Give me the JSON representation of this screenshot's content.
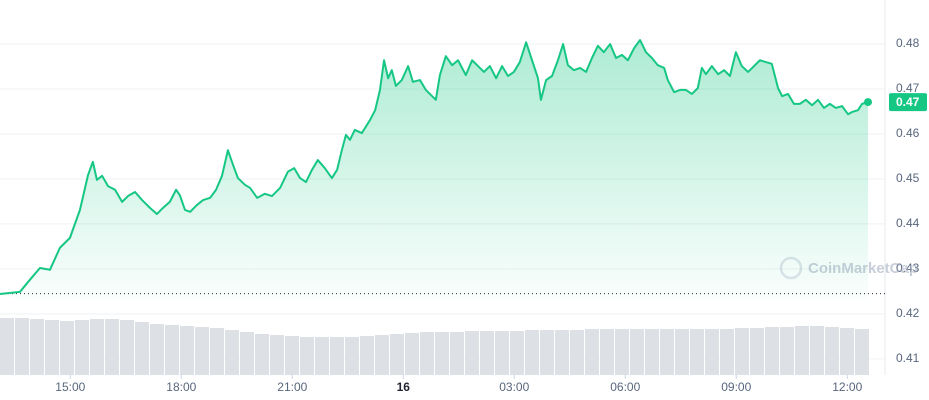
{
  "chart_data": {
    "type": "line",
    "x": [
      13.1,
      13.64,
      13.91,
      14.18,
      14.45,
      14.72,
      14.99,
      15.26,
      15.48,
      15.61,
      15.72,
      15.86,
      16.02,
      16.21,
      16.4,
      16.56,
      16.75,
      16.94,
      17.15,
      17.34,
      17.51,
      17.69,
      17.86,
      17.96,
      18.1,
      18.24,
      18.42,
      18.59,
      18.78,
      18.94,
      19.1,
      19.26,
      19.4,
      19.53,
      19.72,
      19.86,
      20.05,
      20.26,
      20.45,
      20.67,
      20.88,
      21.05,
      21.21,
      21.37,
      21.53,
      21.69,
      21.88,
      22.07,
      22.21,
      22.34,
      22.45,
      22.56,
      22.69,
      22.88,
      23.1,
      23.24,
      23.37,
      23.48,
      23.59,
      23.69,
      23.8,
      23.96,
      24.13,
      24.26,
      24.45,
      24.61,
      24.78,
      24.88,
      24.99,
      25.15,
      25.32,
      25.48,
      25.69,
      25.86,
      26.02,
      26.18,
      26.34,
      26.51,
      26.67,
      26.83,
      26.99,
      27.15,
      27.32,
      27.48,
      27.64,
      27.72,
      27.86,
      28.02,
      28.18,
      28.32,
      28.45,
      28.61,
      28.78,
      28.94,
      29.1,
      29.26,
      29.42,
      29.59,
      29.75,
      29.91,
      30.07,
      30.24,
      30.4,
      30.56,
      30.72,
      30.88,
      31.05,
      31.15,
      31.32,
      31.48,
      31.64,
      31.8,
      31.96,
      32.07,
      32.18,
      32.34,
      32.51,
      32.67,
      32.83,
      32.99,
      33.15,
      33.32,
      33.48,
      33.64,
      33.8,
      33.96,
      34.13,
      34.24,
      34.4,
      34.56,
      34.72,
      34.88,
      35.05,
      35.21,
      35.37,
      35.53,
      35.69,
      35.86,
      36.02,
      36.13,
      36.29,
      36.4,
      36.56
    ],
    "series": [
      {
        "color": "#16c784",
        "values": [
          0.4244,
          0.4249,
          0.4276,
          0.4302,
          0.4298,
          0.4347,
          0.4369,
          0.4431,
          0.4509,
          0.4538,
          0.4498,
          0.4507,
          0.4484,
          0.4476,
          0.4449,
          0.4462,
          0.4471,
          0.4453,
          0.4436,
          0.4422,
          0.4436,
          0.4449,
          0.4476,
          0.4464,
          0.4431,
          0.4427,
          0.4442,
          0.4453,
          0.4458,
          0.4476,
          0.4507,
          0.4564,
          0.4531,
          0.4502,
          0.4487,
          0.448,
          0.4458,
          0.4467,
          0.4462,
          0.448,
          0.4516,
          0.4524,
          0.4502,
          0.4493,
          0.452,
          0.4542,
          0.4524,
          0.4502,
          0.452,
          0.4564,
          0.4598,
          0.4587,
          0.4609,
          0.4602,
          0.4631,
          0.4653,
          0.4698,
          0.4764,
          0.4724,
          0.4742,
          0.4707,
          0.472,
          0.4751,
          0.4716,
          0.472,
          0.4698,
          0.4684,
          0.4676,
          0.4731,
          0.4773,
          0.4753,
          0.4764,
          0.4731,
          0.4764,
          0.4751,
          0.4738,
          0.4751,
          0.4724,
          0.4751,
          0.4729,
          0.4738,
          0.476,
          0.4804,
          0.4764,
          0.4724,
          0.4676,
          0.472,
          0.4729,
          0.4764,
          0.48,
          0.4753,
          0.4742,
          0.4747,
          0.4738,
          0.4769,
          0.4796,
          0.4782,
          0.48,
          0.4769,
          0.4776,
          0.4764,
          0.4791,
          0.4809,
          0.4782,
          0.4769,
          0.4753,
          0.4747,
          0.472,
          0.4693,
          0.4698,
          0.4698,
          0.4689,
          0.4702,
          0.4747,
          0.4733,
          0.4751,
          0.4733,
          0.4742,
          0.4729,
          0.4782,
          0.4751,
          0.4738,
          0.4751,
          0.4764,
          0.476,
          0.4756,
          0.4702,
          0.4684,
          0.4689,
          0.4667,
          0.4667,
          0.4676,
          0.4664,
          0.4676,
          0.4658,
          0.4667,
          0.4658,
          0.4662,
          0.4644,
          0.4649,
          0.4653,
          0.4667,
          0.4671
        ]
      }
    ],
    "volume": {
      "color": "#dde1e6",
      "values": [
        57,
        57,
        56,
        55,
        54,
        55,
        56,
        56,
        55,
        53,
        51,
        50,
        49,
        48,
        47,
        45,
        43,
        41,
        40,
        39,
        38,
        38,
        38,
        38,
        39,
        40,
        41,
        42,
        43,
        43,
        43,
        44,
        44,
        44,
        44,
        45,
        45,
        45,
        45,
        46,
        46,
        46,
        46,
        46,
        46,
        46,
        46,
        46,
        46,
        47,
        47,
        48,
        48,
        49,
        49,
        48,
        47,
        46
      ]
    },
    "reference_line": 0.4245,
    "price_tag": "0.47",
    "watermark": "CoinMarketCap",
    "xlim": [
      13.1,
      37.02
    ],
    "xticks": [
      {
        "value": 15,
        "label": "15:00"
      },
      {
        "value": 18,
        "label": "18:00"
      },
      {
        "value": 21,
        "label": "21:00"
      },
      {
        "value": 24,
        "label": "16"
      },
      {
        "value": 27,
        "label": "03:00"
      },
      {
        "value": 30,
        "label": "06:00"
      },
      {
        "value": 33,
        "label": "09:00"
      },
      {
        "value": 36,
        "label": "12:00"
      }
    ],
    "ylim": [
      0.4064,
      0.4898
    ],
    "yticks": [
      0.41,
      0.42,
      0.43,
      0.44,
      0.45,
      0.46,
      0.47,
      0.48
    ],
    "grid": true
  }
}
